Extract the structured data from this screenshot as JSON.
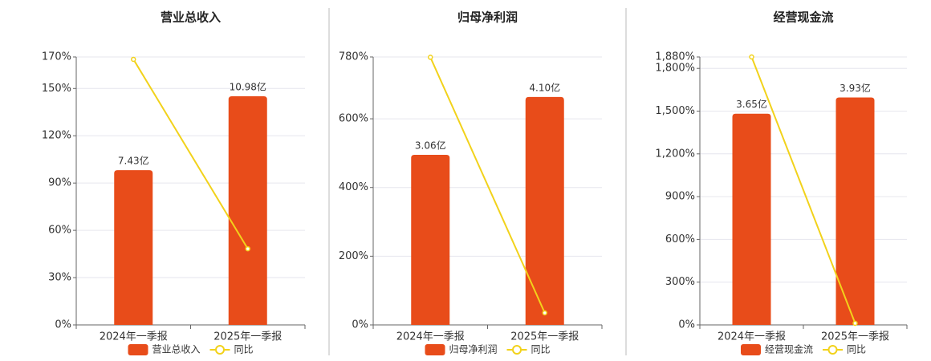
{
  "chart_data": [
    {
      "type": "bar-line",
      "title": "营业总收入",
      "categories": [
        "2024年一季报",
        "2025年一季报"
      ],
      "series": [
        {
          "name": "营业总收入",
          "type": "bar",
          "axis": "y2",
          "color": "#e84c1a",
          "values": [
            7.43,
            10.98
          ],
          "value_labels": [
            "7.43亿",
            "10.98亿"
          ]
        },
        {
          "name": "同比",
          "type": "line",
          "color": "#f2d21b",
          "values": [
            168.5,
            48.3
          ]
        }
      ],
      "ylim": [
        0,
        170
      ],
      "yticks": [
        {
          "value": 0,
          "label": "0%"
        },
        {
          "value": 30,
          "label": "30%"
        },
        {
          "value": 60,
          "label": "60%"
        },
        {
          "value": 90,
          "label": "90%"
        },
        {
          "value": 120,
          "label": "120%"
        },
        {
          "value": 150,
          "label": "150%"
        },
        {
          "value": 170,
          "label": "170%"
        }
      ],
      "y2lim": [
        0,
        12.87
      ],
      "grid": true
    },
    {
      "type": "bar-line",
      "title": "归母净利润",
      "categories": [
        "2024年一季报",
        "2025年一季报"
      ],
      "series": [
        {
          "name": "归母净利润",
          "type": "bar",
          "axis": "y2",
          "color": "#e84c1a",
          "values": [
            3.06,
            4.1
          ],
          "value_labels": [
            "3.06亿",
            "4.10亿"
          ]
        },
        {
          "name": "同比",
          "type": "line",
          "color": "#f2d21b",
          "values": [
            779,
            35
          ]
        }
      ],
      "ylim": [
        0,
        780
      ],
      "yticks": [
        {
          "value": 0,
          "label": "0%"
        },
        {
          "value": 200,
          "label": "200%"
        },
        {
          "value": 400,
          "label": "400%"
        },
        {
          "value": 600,
          "label": "600%"
        },
        {
          "value": 780,
          "label": "780%"
        }
      ],
      "y2lim": [
        0,
        4.82
      ],
      "grid": true
    },
    {
      "type": "bar-line",
      "title": "经营现金流",
      "categories": [
        "2024年一季报",
        "2025年一季报"
      ],
      "series": [
        {
          "name": "经营现金流",
          "type": "bar",
          "axis": "y2",
          "color": "#e84c1a",
          "values": [
            3.65,
            3.93
          ],
          "value_labels": [
            "3.65亿",
            "3.93亿"
          ]
        },
        {
          "name": "同比",
          "type": "line",
          "color": "#f2d21b",
          "values": [
            1880,
            11
          ]
        }
      ],
      "ylim": [
        0,
        1880
      ],
      "yticks": [
        {
          "value": 0,
          "label": "0%"
        },
        {
          "value": 300,
          "label": "300%"
        },
        {
          "value": 600,
          "label": "600%"
        },
        {
          "value": 900,
          "label": "900%"
        },
        {
          "value": 1200,
          "label": "1,200%"
        },
        {
          "value": 1500,
          "label": "1,500%"
        },
        {
          "value": 1800,
          "label": "1,800%"
        },
        {
          "value": 1880,
          "label": "1,880%"
        }
      ],
      "y2lim": [
        0,
        4.63
      ],
      "grid": true
    }
  ]
}
